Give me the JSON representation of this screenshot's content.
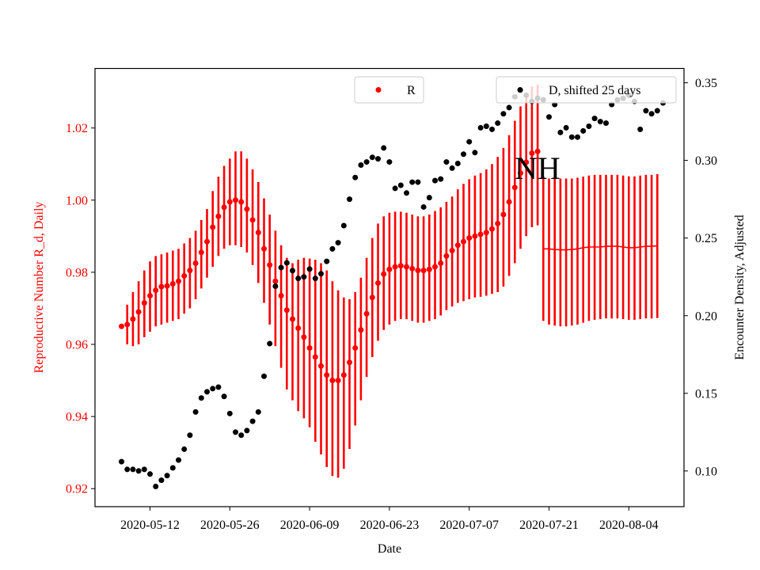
{
  "chart_data": {
    "type": "scatter",
    "annotation": "NH",
    "xlabel": "Date",
    "ylabel_left": "Reproductive Number R_d, Daily",
    "ylabel_right": "Encounter Density, Adjusted",
    "x_ticks": [
      "2020-05-12",
      "2020-05-26",
      "2020-06-09",
      "2020-06-23",
      "2020-07-07",
      "2020-07-21",
      "2020-08-04"
    ],
    "x_start": "2020-05-07",
    "left_axis": {
      "ylim": [
        0.915,
        1.0365
      ],
      "ticks": [
        "0.92",
        "0.94",
        "0.96",
        "0.98",
        "1.00",
        "1.02"
      ],
      "color": "#ff0000"
    },
    "right_axis": {
      "ylim": [
        0.077,
        0.3592
      ],
      "ticks": [
        "0.10",
        "0.15",
        "0.20",
        "0.25",
        "0.30",
        "0.35"
      ],
      "color": "#000000"
    },
    "legend": {
      "r_label": "R",
      "d_label": "D, shifted 25 days"
    },
    "series": [
      {
        "name": "R",
        "axis": "left",
        "color": "#ff0000",
        "marker": "dot",
        "values": [
          0.965,
          0.9655,
          0.967,
          0.969,
          0.9715,
          0.9735,
          0.975,
          0.976,
          0.9762,
          0.9768,
          0.9775,
          0.979,
          0.9805,
          0.9825,
          0.9855,
          0.9885,
          0.9925,
          0.9955,
          0.998,
          0.9995,
          1.0,
          0.9995,
          0.9975,
          0.9945,
          0.991,
          0.9865,
          0.982,
          0.9775,
          0.9735,
          0.9695,
          0.967,
          0.9645,
          0.962,
          0.959,
          0.9565,
          0.954,
          0.9515,
          0.95,
          0.95,
          0.9515,
          0.955,
          0.959,
          0.964,
          0.9685,
          0.973,
          0.977,
          0.9795,
          0.9808,
          0.9815,
          0.9818,
          0.9815,
          0.981,
          0.9805,
          0.9805,
          0.9808,
          0.9815,
          0.9825,
          0.9845,
          0.986,
          0.9875,
          0.9885,
          0.9895,
          0.99,
          0.9905,
          0.991,
          0.992,
          0.9935,
          0.996,
          0.9995,
          1.0035,
          1.0075,
          1.0105,
          1.013,
          1.0135
        ],
        "err_low": [
          0.965,
          0.96,
          0.9595,
          0.96,
          0.962,
          0.9635,
          0.965,
          0.9655,
          0.966,
          0.9665,
          0.967,
          0.9685,
          0.97,
          0.9725,
          0.9755,
          0.9785,
          0.9815,
          0.9845,
          0.9865,
          0.9875,
          0.9875,
          0.987,
          0.9855,
          0.982,
          0.977,
          0.9715,
          0.9655,
          0.9595,
          0.9535,
          0.9475,
          0.9445,
          0.9415,
          0.9395,
          0.937,
          0.933,
          0.9295,
          0.926,
          0.9235,
          0.923,
          0.9255,
          0.931,
          0.9375,
          0.9445,
          0.951,
          0.9565,
          0.961,
          0.964,
          0.9655,
          0.9665,
          0.967,
          0.967,
          0.9665,
          0.966,
          0.966,
          0.9665,
          0.967,
          0.968,
          0.9695,
          0.9705,
          0.9715,
          0.972,
          0.9725,
          0.973,
          0.9732,
          0.9735,
          0.974,
          0.9745,
          0.976,
          0.979,
          0.9825,
          0.9865,
          0.99,
          0.9925,
          0.993
        ],
        "err_high": [
          0.965,
          0.971,
          0.9745,
          0.9775,
          0.9805,
          0.983,
          0.9845,
          0.985,
          0.9855,
          0.986,
          0.9865,
          0.988,
          0.9895,
          0.9915,
          0.9945,
          0.9975,
          1.0025,
          1.0065,
          1.0095,
          1.0115,
          1.0135,
          1.0135,
          1.0115,
          1.0085,
          1.005,
          1.0005,
          0.996,
          0.9915,
          0.9875,
          0.984,
          0.9825,
          0.9835,
          0.984,
          0.9838,
          0.9835,
          0.9825,
          0.9805,
          0.9775,
          0.975,
          0.973,
          0.9725,
          0.9745,
          0.9785,
          0.984,
          0.9895,
          0.9935,
          0.9955,
          0.9965,
          0.9968,
          0.9968,
          0.9965,
          0.996,
          0.9955,
          0.9955,
          0.996,
          0.997,
          0.998,
          0.9995,
          1.001,
          1.003,
          1.0045,
          1.0058,
          1.0068,
          1.0075,
          1.0085,
          1.01,
          1.012,
          1.0145,
          1.018,
          1.022,
          1.026,
          1.0295,
          1.0315,
          1.032
        ]
      },
      {
        "name": "R",
        "axis": "left",
        "color": "#ff0000",
        "marker": "line",
        "values": [
          0.9865,
          0.9865,
          0.9863,
          0.9862,
          0.9862,
          0.9863,
          0.9865,
          0.9868,
          0.987,
          0.987,
          0.987,
          0.9872,
          0.9872,
          0.9872,
          0.987,
          0.9868,
          0.9868,
          0.987,
          0.9872,
          0.9872,
          0.9873
        ],
        "err_low": [
          0.9665,
          0.9655,
          0.9652,
          0.965,
          0.965,
          0.9652,
          0.9655,
          0.966,
          0.9665,
          0.9668,
          0.967,
          0.9672,
          0.9672,
          0.9672,
          0.967,
          0.9668,
          0.9668,
          0.967,
          0.9672,
          0.9672,
          0.9673
        ],
        "err_high": [
          1.0065,
          1.006,
          1.006,
          1.006,
          1.006,
          1.006,
          1.0062,
          1.0065,
          1.0068,
          1.007,
          1.007,
          1.007,
          1.007,
          1.007,
          1.0068,
          1.0066,
          1.0066,
          1.0068,
          1.007,
          1.007,
          1.0072
        ]
      },
      {
        "name": "D, shifted 25 days",
        "axis": "right",
        "color": "#000000",
        "marker": "dot",
        "values": [
          0.106,
          0.101,
          0.101,
          0.1,
          0.101,
          0.098,
          0.09,
          0.094,
          0.097,
          0.102,
          0.107,
          0.114,
          0.123,
          0.138,
          0.147,
          0.151,
          0.153,
          0.154,
          0.148,
          0.137,
          0.125,
          0.123,
          0.126,
          0.132,
          0.138,
          0.161,
          0.182,
          0.219,
          0.231,
          0.234,
          0.229,
          0.224,
          0.225,
          0.23,
          0.224,
          0.227,
          0.235,
          0.243,
          0.247,
          0.258,
          0.275,
          0.289,
          0.297,
          0.299,
          0.302,
          0.301,
          0.308,
          0.299,
          0.282,
          0.284,
          0.279,
          0.286,
          0.286,
          0.27,
          0.276,
          0.287,
          0.288,
          0.299,
          0.295,
          0.298,
          0.304,
          0.312,
          0.305,
          0.321,
          0.322,
          0.32,
          0.324,
          0.33,
          0.334,
          0.341,
          0.345,
          0.342,
          0.338,
          0.34,
          0.339,
          0.328,
          0.336,
          0.318,
          0.321,
          0.315,
          0.315,
          0.319,
          0.322,
          0.327,
          0.325,
          0.324,
          0.336,
          0.339,
          0.34,
          0.342,
          0.338,
          0.32,
          0.332,
          0.33,
          0.332,
          0.337
        ]
      }
    ]
  }
}
